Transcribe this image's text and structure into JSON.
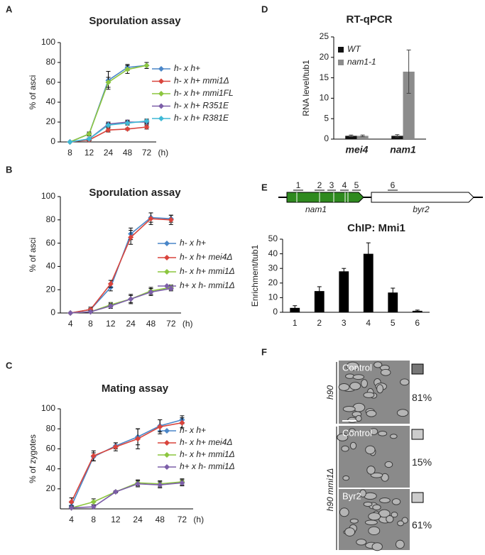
{
  "panel_labels": [
    "A",
    "B",
    "C",
    "D",
    "E",
    "F"
  ],
  "chart_data": [
    {
      "type": "line",
      "title": "Sporulation assay",
      "y_label": "% of asci",
      "x_unit": "(h)",
      "categories": [
        "8",
        "12",
        "24",
        "48",
        "72"
      ],
      "ylim": [
        0,
        100
      ],
      "yticks": [
        0,
        20,
        40,
        60,
        80,
        100
      ],
      "series": [
        {
          "name": "h- x h+",
          "color": "#4a86c8",
          "values": [
            0,
            8,
            62,
            75,
            77
          ],
          "errors": [
            0,
            1,
            9,
            3,
            3
          ]
        },
        {
          "name": "h- x h+ mmi1Δ",
          "color": "#d9443c",
          "values": [
            0,
            2,
            12,
            13,
            15
          ],
          "errors": [
            0,
            1,
            2,
            1,
            2
          ]
        },
        {
          "name": "h- x h+ mmi1FL",
          "color": "#8cc63f",
          "values": [
            0,
            8,
            60,
            73,
            77
          ],
          "errors": [
            0,
            2,
            5,
            4,
            3
          ]
        },
        {
          "name": "h- x h+ R351E",
          "color": "#7c5ea8",
          "values": [
            0,
            3,
            18,
            20,
            20
          ],
          "errors": [
            0,
            1,
            2,
            2,
            2
          ]
        },
        {
          "name": "h- x h+ R381E",
          "color": "#3fb9d6",
          "values": [
            0,
            3,
            17,
            19,
            21
          ],
          "errors": [
            0,
            1,
            2,
            2,
            2
          ]
        }
      ]
    },
    {
      "type": "line",
      "title": "Sporulation assay",
      "y_label": "% of asci",
      "x_unit": "(h)",
      "categories": [
        "4",
        "8",
        "12",
        "24",
        "48",
        "72"
      ],
      "ylim": [
        0,
        100
      ],
      "yticks": [
        0,
        20,
        40,
        60,
        80,
        100
      ],
      "series": [
        {
          "name": "h- x h+",
          "color": "#4a86c8",
          "values": [
            0,
            3,
            22,
            68,
            82,
            81
          ],
          "errors": [
            0,
            1,
            3,
            5,
            4,
            3
          ]
        },
        {
          "name": "h- x h+ mei4Δ",
          "color": "#d9443c",
          "values": [
            0,
            3,
            25,
            65,
            81,
            80
          ],
          "errors": [
            0,
            2,
            3,
            6,
            5,
            4
          ]
        },
        {
          "name": "h- x h+ mmi1Δ",
          "color": "#8cc63f",
          "values": [
            0,
            1,
            7,
            12,
            19,
            22
          ],
          "errors": [
            0,
            1,
            2,
            4,
            3,
            2
          ]
        },
        {
          "name": "h+ x h- mmi1Δ",
          "color": "#7c5ea8",
          "values": [
            0,
            1,
            6,
            12,
            18,
            21
          ],
          "errors": [
            0,
            1,
            2,
            3,
            3,
            2
          ]
        }
      ]
    },
    {
      "type": "line",
      "title": "Mating assay",
      "y_label": "% of zygotes",
      "x_unit": "(h)",
      "categories": [
        "4",
        "8",
        "12",
        "24",
        "48",
        "72"
      ],
      "ylim": [
        0,
        100
      ],
      "yticks": [
        20,
        40,
        60,
        80,
        100
      ],
      "series": [
        {
          "name": "h- x h+",
          "color": "#4a86c8",
          "values": [
            3,
            52,
            63,
            72,
            83,
            89
          ],
          "errors": [
            3,
            4,
            3,
            8,
            6,
            4
          ]
        },
        {
          "name": "h- x h+ mei4Δ",
          "color": "#d9443c",
          "values": [
            7,
            53,
            62,
            70,
            82,
            86
          ],
          "errors": [
            4,
            5,
            4,
            10,
            7,
            5
          ]
        },
        {
          "name": "h- x h+ mmi1Δ",
          "color": "#8cc63f",
          "values": [
            1,
            7,
            17,
            26,
            25,
            27
          ],
          "errors": [
            1,
            3,
            1,
            3,
            3,
            3
          ]
        },
        {
          "name": "h+ x h- mmi1Δ",
          "color": "#7c5ea8",
          "values": [
            1,
            2,
            17,
            25,
            24,
            26
          ],
          "errors": [
            1,
            2,
            1,
            3,
            3,
            3
          ]
        }
      ]
    },
    {
      "type": "bar",
      "title": "RT-qPCR",
      "y_label": "RNA level/tub1",
      "categories": [
        "mei4",
        "nam1"
      ],
      "ylim": [
        0,
        25
      ],
      "yticks": [
        0,
        5,
        10,
        15,
        20,
        25
      ],
      "series": [
        {
          "name": "WT",
          "color": "#111111",
          "values": [
            0.8,
            0.8
          ],
          "errors": [
            0.2,
            0.3
          ]
        },
        {
          "name": "nam1-1",
          "color": "#8c8c8c",
          "values": [
            0.8,
            16.5
          ],
          "errors": [
            0.2,
            5.3
          ]
        }
      ]
    },
    {
      "type": "bar",
      "title": "ChIP: Mmi1",
      "y_label": "Enrichment/tub1",
      "categories": [
        "1",
        "2",
        "3",
        "4",
        "5",
        "6"
      ],
      "ylim": [
        0,
        50
      ],
      "yticks": [
        0,
        10,
        20,
        30,
        40,
        50
      ],
      "color": "#000000",
      "values": [
        3,
        14.5,
        28,
        40,
        13.5,
        1
      ],
      "errors": [
        1.5,
        3,
        2,
        7.5,
        3,
        0.5
      ]
    }
  ],
  "gene_diagram": {
    "regions": [
      "1",
      "2",
      "3",
      "4",
      "5",
      "6"
    ],
    "genes": [
      "nam1",
      "byr2"
    ]
  },
  "microscopy": {
    "strains": [
      "h90",
      "h90 mmi1Δ"
    ],
    "panels": [
      {
        "label": "Control",
        "percent": "81%"
      },
      {
        "label": "Control",
        "percent": "15%"
      },
      {
        "label": "Byr2",
        "percent": "61%"
      }
    ]
  }
}
